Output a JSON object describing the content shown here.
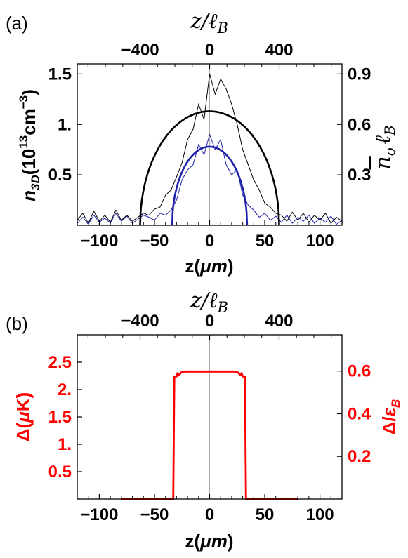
{
  "chart_data": [
    {
      "panel": "(a)",
      "type": "line",
      "xlabel": "z(μm)",
      "xlabel_main": "z(",
      "xlabel_unit": "μm",
      "xlabel_close": ")",
      "top_axis_label": "z/ℓ_B",
      "top_axis_label_main": "z/ℓ",
      "top_axis_label_sub": "B",
      "ylabel_left": "n_3D(10^13 cm^-3)",
      "ylabel_left_n": "n",
      "ylabel_left_sub": "3D",
      "ylabel_left_unit": "(10",
      "ylabel_left_exp": "13",
      "ylabel_left_unit2": "cm",
      "ylabel_left_exp2": "−3",
      "ylabel_left_close": ")",
      "ylabel_right": "n̄_σ ℓ_B",
      "ylabel_right_n": "n",
      "ylabel_right_sub": "σ",
      "ylabel_right_l": "ℓ",
      "ylabel_right_lsub": "B",
      "xlim": [
        -120,
        120
      ],
      "ylim_left": [
        0,
        1.6
      ],
      "ylim_right": [
        0,
        0.96
      ],
      "x_ticks": [
        "−100",
        "−50",
        "0",
        "50",
        "100"
      ],
      "x_tick_values": [
        -100,
        -50,
        0,
        50,
        100
      ],
      "top_ticks": [
        "−400",
        "0",
        "400"
      ],
      "top_tick_values": [
        -400,
        0,
        400
      ],
      "y_ticks_left": [
        "0.5",
        "1.",
        "1.5"
      ],
      "y_tick_values_left": [
        0.5,
        1.0,
        1.5
      ],
      "y_ticks_right": [
        "0.3",
        "0.6",
        "0.9"
      ],
      "y_tick_values_right": [
        0.3,
        0.6,
        0.9
      ],
      "smooth_black": {
        "amplitude": 1.13,
        "radius": 63,
        "color": "#000000"
      },
      "smooth_blue": {
        "amplitude": 0.78,
        "radius": 34,
        "color": "#1e22a8"
      },
      "noisy_black": {
        "color": "#000000",
        "x": [
          -120,
          -115,
          -110,
          -105,
          -100,
          -95,
          -90,
          -85,
          -80,
          -75,
          -70,
          -65,
          -60,
          -55,
          -50,
          -45,
          -40,
          -35,
          -30,
          -25,
          -20,
          -15,
          -10,
          -5,
          0,
          5,
          10,
          15,
          20,
          25,
          30,
          35,
          40,
          45,
          50,
          55,
          60,
          65,
          70,
          75,
          80,
          85,
          90,
          95,
          100,
          105,
          110,
          115,
          120
        ],
        "y": [
          0.05,
          0.12,
          0.02,
          0.14,
          0.04,
          0.1,
          0.03,
          0.15,
          0.05,
          0.1,
          0.04,
          0.08,
          0.12,
          0.1,
          0.16,
          0.18,
          0.3,
          0.35,
          0.48,
          0.62,
          0.85,
          0.95,
          1.2,
          1.05,
          1.5,
          1.3,
          1.45,
          1.35,
          1.2,
          1.0,
          0.75,
          0.6,
          0.45,
          0.35,
          0.22,
          0.18,
          0.12,
          0.1,
          0.04,
          0.13,
          0.05,
          0.12,
          0.03,
          0.1,
          0.05,
          0.12,
          0.02,
          0.08,
          0.04
        ]
      },
      "noisy_blue": {
        "color": "#1e22a8",
        "x": [
          -120,
          -115,
          -110,
          -105,
          -100,
          -95,
          -90,
          -85,
          -80,
          -75,
          -70,
          -65,
          -60,
          -55,
          -50,
          -45,
          -40,
          -35,
          -30,
          -25,
          -20,
          -15,
          -10,
          -5,
          0,
          5,
          10,
          15,
          20,
          25,
          30,
          35,
          40,
          45,
          50,
          55,
          60,
          65,
          70,
          75,
          80,
          85,
          90,
          95,
          100,
          105,
          110,
          115,
          120
        ],
        "y": [
          0.02,
          0.08,
          0.01,
          0.1,
          0.03,
          0.07,
          0.02,
          0.12,
          0.04,
          0.09,
          0.02,
          0.06,
          0.1,
          0.08,
          0.05,
          0.12,
          0.1,
          0.15,
          0.25,
          0.45,
          0.55,
          0.6,
          0.8,
          0.7,
          0.9,
          0.75,
          0.85,
          0.6,
          0.5,
          0.55,
          0.3,
          0.2,
          0.15,
          0.08,
          0.12,
          0.05,
          0.09,
          0.03,
          0.1,
          0.02,
          0.08,
          0.04,
          0.1,
          0.02,
          0.07,
          0.03,
          0.09,
          0.01,
          0.05
        ]
      }
    },
    {
      "panel": "(b)",
      "type": "line",
      "xlabel": "z(μm)",
      "xlabel_main": "z(",
      "xlabel_unit": "μm",
      "xlabel_close": ")",
      "top_axis_label": "z/ℓ_B",
      "top_axis_label_main": "z/ℓ",
      "top_axis_label_sub": "B",
      "ylabel_left": "Δ(μK)",
      "ylabel_left_main": "Δ(",
      "ylabel_left_unit": "μ",
      "ylabel_left_close": "K)",
      "ylabel_right": "Δ/ε_B",
      "ylabel_right_main": "Δ/",
      "ylabel_right_eps": "ε",
      "ylabel_right_sub": "B",
      "xlim": [
        -120,
        120
      ],
      "ylim_left": [
        0,
        3.0
      ],
      "ylim_right": [
        0,
        0.77
      ],
      "x_ticks": [
        "−100",
        "−50",
        "0",
        "50",
        "100"
      ],
      "x_tick_values": [
        -100,
        -50,
        0,
        50,
        100
      ],
      "top_ticks": [
        "−400",
        "0",
        "400"
      ],
      "top_tick_values": [
        -400,
        0,
        400
      ],
      "y_ticks_left": [
        "0.5",
        "1.",
        "1.5",
        "2.",
        "2.5"
      ],
      "y_tick_values_left": [
        0.5,
        1.0,
        1.5,
        2.0,
        2.5
      ],
      "y_ticks_right": [
        "0.2",
        "0.4",
        "0.6"
      ],
      "y_tick_values_right": [
        0.2,
        0.4,
        0.6
      ],
      "series": [
        {
          "color": "#ff0000",
          "x": [
            -80,
            -33,
            -32,
            -30,
            -29,
            -28,
            -26,
            -22,
            -15,
            -5,
            5,
            15,
            22,
            26,
            28,
            29,
            30,
            32,
            33,
            80
          ],
          "y": [
            0,
            0,
            2.24,
            2.24,
            2.3,
            2.26,
            2.31,
            2.33,
            2.33,
            2.33,
            2.33,
            2.33,
            2.33,
            2.31,
            2.26,
            2.3,
            2.24,
            2.24,
            0,
            0
          ]
        }
      ],
      "accent_color": "#ff0000"
    }
  ]
}
